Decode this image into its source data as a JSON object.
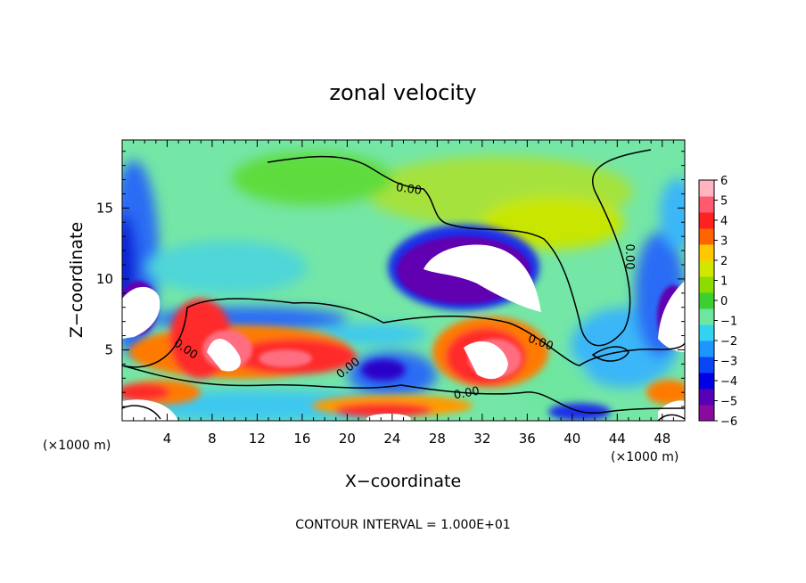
{
  "chart_data": {
    "type": "heatmap",
    "title": "zonal velocity",
    "xlabel": "X−coordinate",
    "ylabel": "Z−coordinate",
    "xlim": [
      0,
      50
    ],
    "ylim": [
      0,
      19.8
    ],
    "x_ticks": [
      4,
      8,
      12,
      16,
      20,
      24,
      28,
      32,
      36,
      40,
      44,
      48
    ],
    "y_ticks": [
      5,
      10,
      15
    ],
    "x_units_left": "(×1000 m)",
    "x_units_right": "(×1000 m)",
    "footer": "CONTOUR INTERVAL = 1.000E+01",
    "colorbar": {
      "min": -6,
      "max": 6,
      "labels": [
        "6",
        "5",
        "4",
        "3",
        "2",
        "1",
        "0",
        "−1",
        "−2",
        "−3",
        "−4",
        "−5",
        "−6"
      ],
      "colors": [
        "#8a0aa0",
        "#5a00b4",
        "#0000e6",
        "#0a46f5",
        "#1e96ff",
        "#32d2f0",
        "#6ee6a0",
        "#3ccf32",
        "#8cdc00",
        "#d2e600",
        "#ffc800",
        "#ff6400",
        "#ff2020",
        "#ff5a6e",
        "#ffb4c0"
      ]
    },
    "contour_labels": [
      "0.00",
      "0.00",
      "0.00",
      "0.00",
      "0.00",
      "0.00"
    ]
  }
}
